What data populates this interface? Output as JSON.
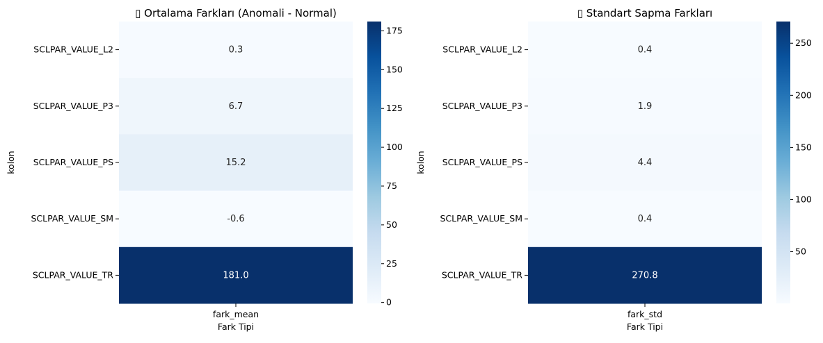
{
  "chart_data": [
    {
      "type": "heatmap",
      "title": "▯ Ortalama Farkları (Anomali - Normal)",
      "xlabel": "Fark Tipi",
      "ylabel": "kolon",
      "x_categories": [
        "fark_mean"
      ],
      "y_categories": [
        "SCLPAR_VALUE_L2",
        "SCLPAR_VALUE_P3",
        "SCLPAR_VALUE_PS",
        "SCLPAR_VALUE_SM",
        "SCLPAR_VALUE_TR"
      ],
      "values": [
        0.3,
        6.7,
        15.2,
        -0.6,
        181.0
      ],
      "annotations": [
        "0.3",
        "6.7",
        "15.2",
        "-0.6",
        "181.0"
      ],
      "colormap": "Blues",
      "color_range": [
        -0.6,
        181.0
      ],
      "colorbar_ticks": [
        0,
        25,
        50,
        75,
        100,
        125,
        150,
        175
      ],
      "colorbar_tick_labels": [
        "0",
        "25",
        "50",
        "75",
        "100",
        "125",
        "150",
        "175"
      ]
    },
    {
      "type": "heatmap",
      "title": "▯ Standart Sapma Farkları",
      "xlabel": "Fark Tipi",
      "ylabel": "kolon",
      "x_categories": [
        "fark_std"
      ],
      "y_categories": [
        "SCLPAR_VALUE_L2",
        "SCLPAR_VALUE_P3",
        "SCLPAR_VALUE_PS",
        "SCLPAR_VALUE_SM",
        "SCLPAR_VALUE_TR"
      ],
      "values": [
        0.4,
        1.9,
        4.4,
        0.4,
        270.8
      ],
      "annotations": [
        "0.4",
        "1.9",
        "4.4",
        "0.4",
        "270.8"
      ],
      "colormap": "Blues",
      "color_range": [
        0.4,
        270.8
      ],
      "colorbar_ticks": [
        50,
        100,
        150,
        200,
        250
      ],
      "colorbar_tick_labels": [
        "50",
        "100",
        "150",
        "200",
        "250"
      ]
    }
  ]
}
